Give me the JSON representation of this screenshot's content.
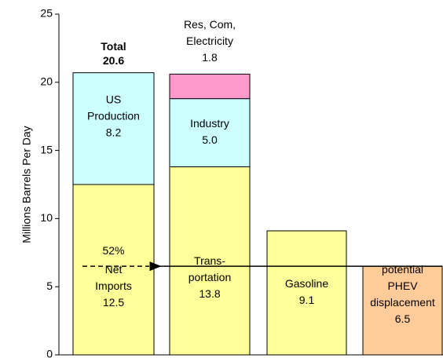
{
  "chart_data": {
    "type": "stacked_bar",
    "ylabel": "Millions Barrels Per Day",
    "ylim": [
      0,
      25
    ],
    "yticks": [
      0,
      5,
      10,
      15,
      20,
      25
    ],
    "bars": [
      {
        "segments": [
          {
            "lines": [
              "Net",
              "Imports"
            ],
            "value": 12.5,
            "color": "#ffff99"
          },
          {
            "lines": [
              "US",
              "Production"
            ],
            "value": 8.2,
            "color": "#ccffff"
          }
        ],
        "total": {
          "label": "Total",
          "value": 20.6
        }
      },
      {
        "segments": [
          {
            "lines": [
              "Trans-",
              "portation"
            ],
            "value": 13.8,
            "color": "#ffff99"
          },
          {
            "lines": [
              "Industry"
            ],
            "value": 5,
            "value_label": "5.0",
            "color": "#ccffff"
          },
          {
            "lines": [
              "Res, Com,",
              "Electricity"
            ],
            "value": 1.8,
            "color": "#ff99cc"
          }
        ]
      },
      {
        "segments": [
          {
            "lines": [
              "Gasoline"
            ],
            "value": 9.1,
            "color": "#ffff99"
          }
        ]
      },
      {
        "segments": [
          {
            "lines": [
              "potential",
              "PHEV",
              "displacement"
            ],
            "value": 6.5,
            "color": "#ffcc99"
          }
        ]
      }
    ],
    "annotation": "52%"
  }
}
